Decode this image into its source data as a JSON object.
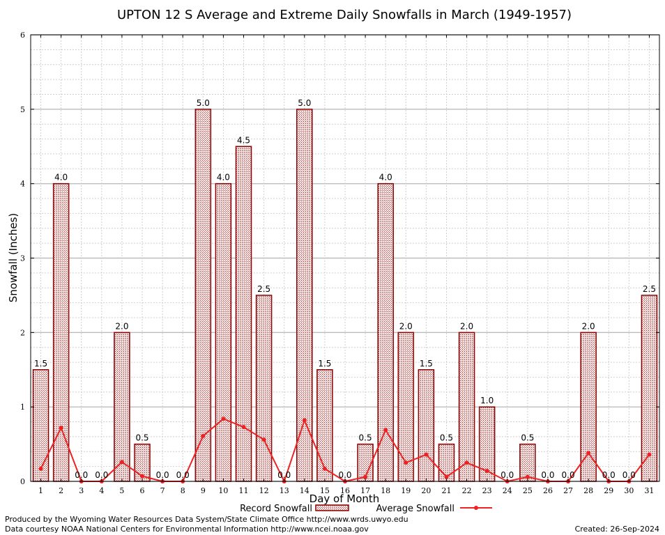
{
  "chart_data": {
    "type": "bar",
    "title": "UPTON 12 S Average and Extreme Daily Snowfalls in March (1949-1957)",
    "xlabel": "Day of Month",
    "ylabel": "Snowfall (Inches)",
    "ylim": [
      0,
      6
    ],
    "yticks": [
      "0",
      "1",
      "2",
      "3",
      "4",
      "5",
      "6"
    ],
    "categories": [
      "1",
      "2",
      "3",
      "4",
      "5",
      "6",
      "7",
      "8",
      "9",
      "10",
      "11",
      "12",
      "13",
      "14",
      "15",
      "16",
      "17",
      "18",
      "19",
      "20",
      "21",
      "22",
      "23",
      "24",
      "25",
      "26",
      "27",
      "28",
      "29",
      "30",
      "31"
    ],
    "series": [
      {
        "name": "Record Snowfall",
        "kind": "bar",
        "values": [
          1.5,
          4.0,
          0.0,
          0.0,
          2.0,
          0.5,
          0.0,
          0.0,
          5.0,
          4.0,
          4.5,
          2.5,
          0.0,
          5.0,
          1.5,
          0.0,
          0.5,
          4.0,
          2.0,
          1.5,
          0.5,
          2.0,
          1.0,
          0.0,
          0.5,
          0.0,
          0.0,
          2.0,
          0.0,
          0.0,
          2.5
        ],
        "labels": [
          "1.5",
          "4.0",
          "0.0",
          "0.0",
          "2.0",
          "0.5",
          "0.0",
          "0.0",
          "5.0",
          "4.0",
          "4.5",
          "2.5",
          "0.0",
          "5.0",
          "1.5",
          "0.0",
          "0.5",
          "4.0",
          "2.0",
          "1.5",
          "0.5",
          "2.0",
          "1.0",
          "0.0",
          "0.5",
          "0.0",
          "0.0",
          "2.0",
          "0.0",
          "0.0",
          "2.5"
        ]
      },
      {
        "name": "Average Snowfall",
        "kind": "line",
        "values": [
          0.17,
          0.72,
          0.0,
          0.0,
          0.26,
          0.07,
          0.0,
          0.0,
          0.61,
          0.84,
          0.73,
          0.56,
          0.0,
          0.82,
          0.17,
          0.0,
          0.06,
          0.69,
          0.25,
          0.36,
          0.06,
          0.25,
          0.14,
          0.0,
          0.06,
          0.0,
          0.0,
          0.38,
          0.0,
          0.0,
          0.36
        ]
      }
    ],
    "grid": true,
    "legend": "bottom-center",
    "colors": {
      "bar_edge": "#8b0000",
      "bar_fill": "#c99a9a",
      "line": "#ee2222",
      "grid": "#c8c8c8"
    }
  },
  "footer": {
    "produced_by": "Produced by the Wyoming Water Resources Data System/State Climate Office http://www.wrds.uwyo.edu",
    "courtesy": "Data courtesy NOAA National Centers for Environmental Information http://www.ncei.noaa.gov",
    "created": "Created:  26-Sep-2024"
  }
}
